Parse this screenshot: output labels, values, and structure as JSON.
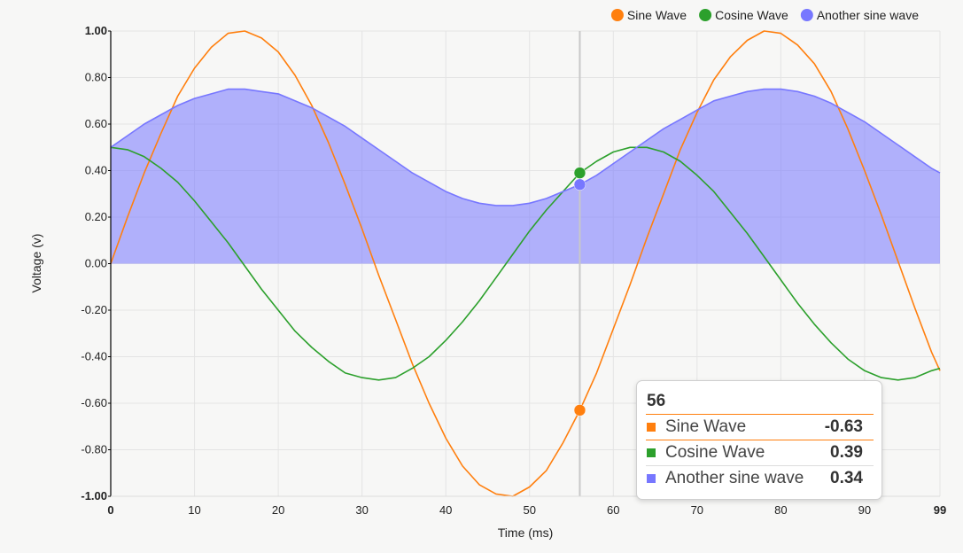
{
  "chart_data": {
    "type": "line",
    "title": "",
    "xlabel": "Time (ms)",
    "ylabel": "Voltage (v)",
    "xlim": [
      0,
      99
    ],
    "ylim": [
      -1,
      1
    ],
    "x_ticks": [
      0,
      10,
      20,
      30,
      40,
      50,
      60,
      70,
      80,
      90,
      99
    ],
    "x_tick_labels": [
      "0",
      "10",
      "20",
      "30",
      "40",
      "50",
      "60",
      "70",
      "80",
      "90",
      "99"
    ],
    "y_ticks": [
      -1,
      -0.8,
      -0.6,
      -0.4,
      -0.2,
      0,
      0.2,
      0.4,
      0.6,
      0.8,
      1
    ],
    "y_tick_labels": [
      "-1.00",
      "-0.80",
      "-0.60",
      "-0.40",
      "-0.20",
      "0.00",
      "0.20",
      "0.40",
      "0.60",
      "0.80",
      "1.00"
    ],
    "grid": true,
    "legend_position": "top-right",
    "x": [
      0,
      2,
      4,
      6,
      8,
      10,
      12,
      14,
      16,
      18,
      20,
      22,
      24,
      26,
      28,
      30,
      32,
      34,
      36,
      38,
      40,
      42,
      44,
      46,
      48,
      50,
      52,
      54,
      56,
      58,
      60,
      62,
      64,
      66,
      68,
      70,
      72,
      74,
      76,
      78,
      80,
      82,
      84,
      86,
      88,
      90,
      92,
      94,
      96,
      98,
      99
    ],
    "series": [
      {
        "name": "Sine Wave",
        "color": "#ff7f0e",
        "area": false,
        "values": [
          0.0,
          0.2,
          0.39,
          0.56,
          0.72,
          0.84,
          0.93,
          0.99,
          1.0,
          0.97,
          0.91,
          0.81,
          0.68,
          0.52,
          0.34,
          0.15,
          -0.05,
          -0.24,
          -0.43,
          -0.6,
          -0.75,
          -0.87,
          -0.95,
          -0.99,
          -1.0,
          -0.96,
          -0.89,
          -0.77,
          -0.63,
          -0.47,
          -0.28,
          -0.09,
          0.11,
          0.3,
          0.49,
          0.65,
          0.79,
          0.89,
          0.96,
          1.0,
          0.99,
          0.94,
          0.86,
          0.74,
          0.58,
          0.4,
          0.21,
          0.01,
          -0.19,
          -0.38,
          -0.46
        ]
      },
      {
        "name": "Cosine Wave",
        "color": "#2ca02c",
        "area": false,
        "values": [
          0.5,
          0.49,
          0.46,
          0.41,
          0.35,
          0.27,
          0.18,
          0.09,
          -0.01,
          -0.11,
          -0.2,
          -0.29,
          -0.36,
          -0.42,
          -0.47,
          -0.49,
          -0.5,
          -0.49,
          -0.45,
          -0.4,
          -0.33,
          -0.25,
          -0.16,
          -0.06,
          0.04,
          0.14,
          0.23,
          0.31,
          0.39,
          0.44,
          0.48,
          0.5,
          0.5,
          0.48,
          0.44,
          0.38,
          0.31,
          0.22,
          0.13,
          0.03,
          -0.07,
          -0.17,
          -0.26,
          -0.34,
          -0.41,
          -0.46,
          -0.49,
          -0.5,
          -0.49,
          -0.46,
          -0.45
        ]
      },
      {
        "name": "Another sine wave",
        "color": "#7777ff",
        "area": true,
        "values": [
          0.5,
          0.55,
          0.6,
          0.64,
          0.68,
          0.71,
          0.73,
          0.75,
          0.75,
          0.74,
          0.73,
          0.7,
          0.67,
          0.63,
          0.59,
          0.54,
          0.49,
          0.44,
          0.39,
          0.35,
          0.31,
          0.28,
          0.26,
          0.25,
          0.25,
          0.26,
          0.28,
          0.31,
          0.34,
          0.38,
          0.43,
          0.48,
          0.53,
          0.58,
          0.62,
          0.66,
          0.7,
          0.72,
          0.74,
          0.75,
          0.75,
          0.74,
          0.72,
          0.69,
          0.65,
          0.61,
          0.56,
          0.51,
          0.46,
          0.41,
          0.39
        ]
      }
    ],
    "hover_x": 56
  },
  "tooltip": {
    "header": "56",
    "rows": [
      {
        "label": "Sine Wave",
        "value": "-0.63",
        "color": "#ff7f0e"
      },
      {
        "label": "Cosine Wave",
        "value": "0.39",
        "color": "#2ca02c"
      },
      {
        "label": "Another sine wave",
        "value": "0.34",
        "color": "#7777ff"
      }
    ]
  }
}
